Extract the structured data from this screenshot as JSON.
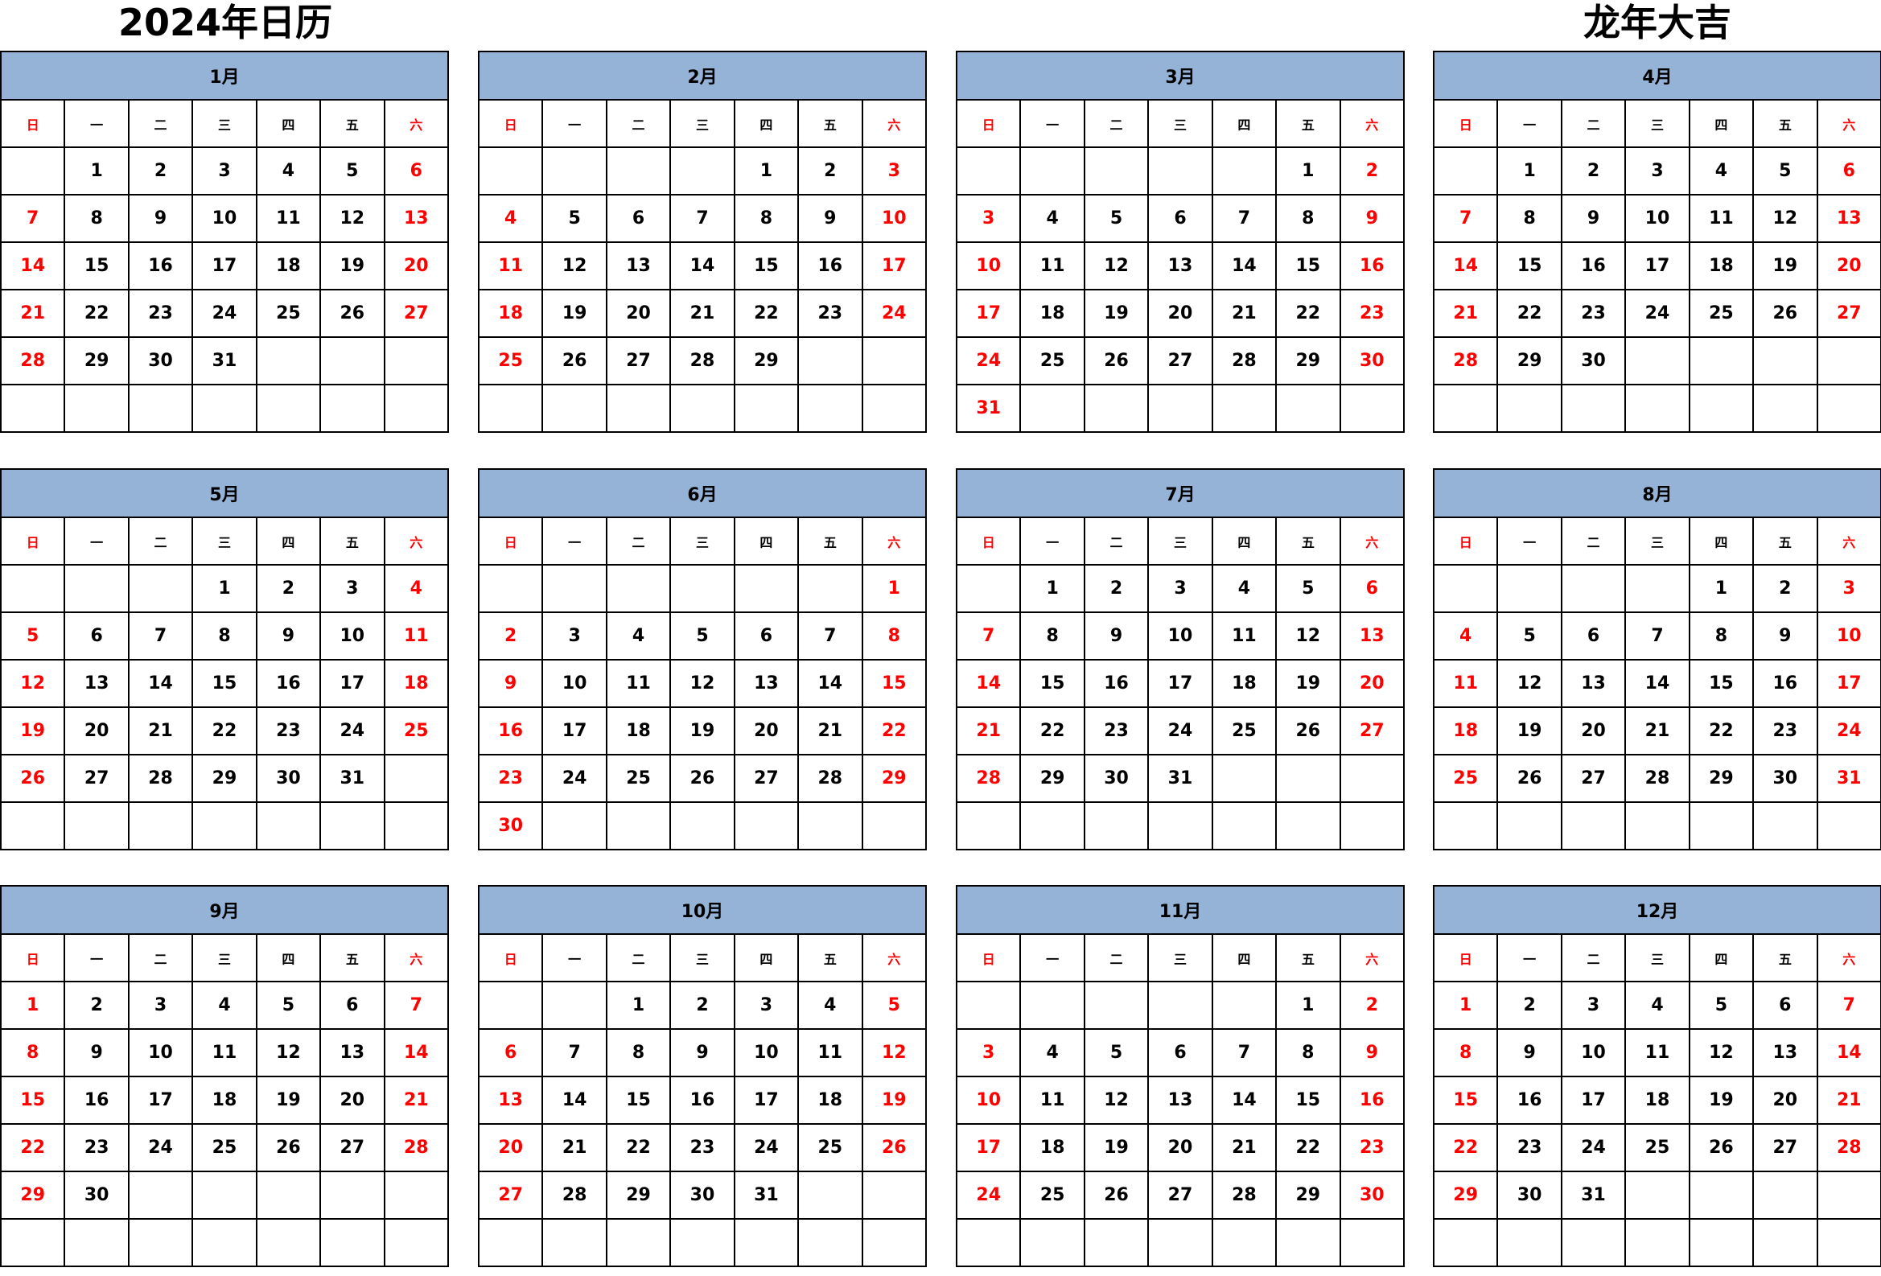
{
  "title_left": "2024年日历",
  "title_right": "龙年大吉",
  "colors": {
    "header_bg": "#95b3d7",
    "weekend": "#ff0000",
    "text": "#000000"
  },
  "weekdays": [
    "日",
    "一",
    "二",
    "三",
    "四",
    "五",
    "六"
  ],
  "months": [
    {
      "label": "1月",
      "weeks": [
        [
          "",
          1,
          2,
          3,
          4,
          5,
          6
        ],
        [
          7,
          8,
          9,
          10,
          11,
          12,
          13
        ],
        [
          14,
          15,
          16,
          17,
          18,
          19,
          20
        ],
        [
          21,
          22,
          23,
          24,
          25,
          26,
          27
        ],
        [
          28,
          29,
          30,
          31,
          "",
          "",
          ""
        ],
        [
          "",
          "",
          "",
          "",
          "",
          "",
          ""
        ]
      ]
    },
    {
      "label": "2月",
      "weeks": [
        [
          "",
          "",
          "",
          "",
          1,
          2,
          3
        ],
        [
          4,
          5,
          6,
          7,
          8,
          9,
          10
        ],
        [
          11,
          12,
          13,
          14,
          15,
          16,
          17
        ],
        [
          18,
          19,
          20,
          21,
          22,
          23,
          24
        ],
        [
          25,
          26,
          27,
          28,
          29,
          "",
          ""
        ],
        [
          "",
          "",
          "",
          "",
          "",
          "",
          ""
        ]
      ]
    },
    {
      "label": "3月",
      "weeks": [
        [
          "",
          "",
          "",
          "",
          "",
          1,
          2
        ],
        [
          3,
          4,
          5,
          6,
          7,
          8,
          9
        ],
        [
          10,
          11,
          12,
          13,
          14,
          15,
          16
        ],
        [
          17,
          18,
          19,
          20,
          21,
          22,
          23
        ],
        [
          24,
          25,
          26,
          27,
          28,
          29,
          30
        ],
        [
          31,
          "",
          "",
          "",
          "",
          "",
          ""
        ]
      ]
    },
    {
      "label": "4月",
      "weeks": [
        [
          "",
          1,
          2,
          3,
          4,
          5,
          6
        ],
        [
          7,
          8,
          9,
          10,
          11,
          12,
          13
        ],
        [
          14,
          15,
          16,
          17,
          18,
          19,
          20
        ],
        [
          21,
          22,
          23,
          24,
          25,
          26,
          27
        ],
        [
          28,
          29,
          30,
          "",
          "",
          "",
          ""
        ],
        [
          "",
          "",
          "",
          "",
          "",
          "",
          ""
        ]
      ]
    },
    {
      "label": "5月",
      "weeks": [
        [
          "",
          "",
          "",
          1,
          2,
          3,
          4
        ],
        [
          5,
          6,
          7,
          8,
          9,
          10,
          11
        ],
        [
          12,
          13,
          14,
          15,
          16,
          17,
          18
        ],
        [
          19,
          20,
          21,
          22,
          23,
          24,
          25
        ],
        [
          26,
          27,
          28,
          29,
          30,
          31,
          ""
        ],
        [
          "",
          "",
          "",
          "",
          "",
          "",
          ""
        ]
      ]
    },
    {
      "label": "6月",
      "weeks": [
        [
          "",
          "",
          "",
          "",
          "",
          "",
          1
        ],
        [
          2,
          3,
          4,
          5,
          6,
          7,
          8
        ],
        [
          9,
          10,
          11,
          12,
          13,
          14,
          15
        ],
        [
          16,
          17,
          18,
          19,
          20,
          21,
          22
        ],
        [
          23,
          24,
          25,
          26,
          27,
          28,
          29
        ],
        [
          30,
          "",
          "",
          "",
          "",
          "",
          ""
        ]
      ]
    },
    {
      "label": "7月",
      "weeks": [
        [
          "",
          1,
          2,
          3,
          4,
          5,
          6
        ],
        [
          7,
          8,
          9,
          10,
          11,
          12,
          13
        ],
        [
          14,
          15,
          16,
          17,
          18,
          19,
          20
        ],
        [
          21,
          22,
          23,
          24,
          25,
          26,
          27
        ],
        [
          28,
          29,
          30,
          31,
          "",
          "",
          ""
        ],
        [
          "",
          "",
          "",
          "",
          "",
          "",
          ""
        ]
      ]
    },
    {
      "label": "8月",
      "weeks": [
        [
          "",
          "",
          "",
          "",
          1,
          2,
          3
        ],
        [
          4,
          5,
          6,
          7,
          8,
          9,
          10
        ],
        [
          11,
          12,
          13,
          14,
          15,
          16,
          17
        ],
        [
          18,
          19,
          20,
          21,
          22,
          23,
          24
        ],
        [
          25,
          26,
          27,
          28,
          29,
          30,
          31
        ],
        [
          "",
          "",
          "",
          "",
          "",
          "",
          ""
        ]
      ]
    },
    {
      "label": "9月",
      "weeks": [
        [
          1,
          2,
          3,
          4,
          5,
          6,
          7
        ],
        [
          8,
          9,
          10,
          11,
          12,
          13,
          14
        ],
        [
          15,
          16,
          17,
          18,
          19,
          20,
          21
        ],
        [
          22,
          23,
          24,
          25,
          26,
          27,
          28
        ],
        [
          29,
          30,
          "",
          "",
          "",
          "",
          ""
        ],
        [
          "",
          "",
          "",
          "",
          "",
          "",
          ""
        ]
      ]
    },
    {
      "label": "10月",
      "weeks": [
        [
          "",
          "",
          1,
          2,
          3,
          4,
          5
        ],
        [
          6,
          7,
          8,
          9,
          10,
          11,
          12
        ],
        [
          13,
          14,
          15,
          16,
          17,
          18,
          19
        ],
        [
          20,
          21,
          22,
          23,
          24,
          25,
          26
        ],
        [
          27,
          28,
          29,
          30,
          31,
          "",
          ""
        ],
        [
          "",
          "",
          "",
          "",
          "",
          "",
          ""
        ]
      ]
    },
    {
      "label": "11月",
      "weeks": [
        [
          "",
          "",
          "",
          "",
          "",
          1,
          2
        ],
        [
          3,
          4,
          5,
          6,
          7,
          8,
          9
        ],
        [
          10,
          11,
          12,
          13,
          14,
          15,
          16
        ],
        [
          17,
          18,
          19,
          20,
          21,
          22,
          23
        ],
        [
          24,
          25,
          26,
          27,
          28,
          29,
          30
        ],
        [
          "",
          "",
          "",
          "",
          "",
          "",
          ""
        ]
      ]
    },
    {
      "label": "12月",
      "weeks": [
        [
          1,
          2,
          3,
          4,
          5,
          6,
          7
        ],
        [
          8,
          9,
          10,
          11,
          12,
          13,
          14
        ],
        [
          15,
          16,
          17,
          18,
          19,
          20,
          21
        ],
        [
          22,
          23,
          24,
          25,
          26,
          27,
          28
        ],
        [
          29,
          30,
          31,
          "",
          "",
          "",
          ""
        ],
        [
          "",
          "",
          "",
          "",
          "",
          "",
          ""
        ]
      ]
    }
  ]
}
